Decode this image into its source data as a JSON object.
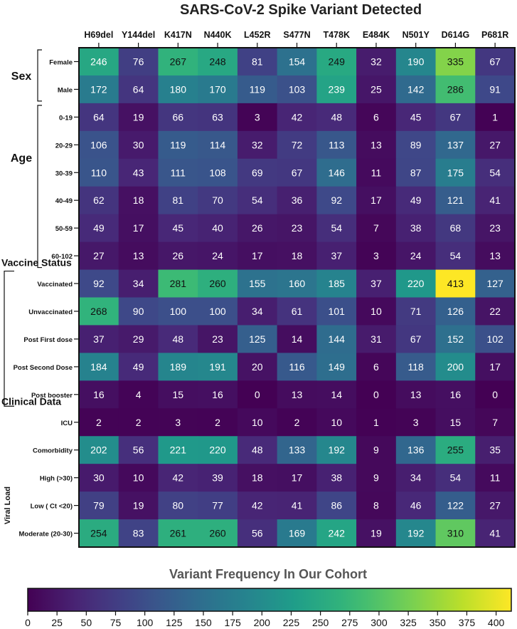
{
  "chart_data": {
    "type": "heatmap",
    "title": "SARS-CoV-2 Spike Variant Detected",
    "columns": [
      "H69del",
      "Y144del",
      "K417N",
      "N440K",
      "L452R",
      "S477N",
      "T478K",
      "E484K",
      "N501Y",
      "D614G",
      "P681R"
    ],
    "groups": [
      {
        "label": "Sex",
        "rows": [
          "Female",
          "Male"
        ]
      },
      {
        "label": "Age",
        "rows": [
          "0-19",
          "20-29",
          "30-39",
          "40-49",
          "50-59",
          "60-102"
        ]
      },
      {
        "label": "Vaccine Status",
        "rows": [
          "Vaccinated",
          "Unvaccinated",
          "Post First dose",
          "Post Second Dose",
          "Post booster"
        ]
      },
      {
        "label": "Clinical Data",
        "rows": [
          "ICU",
          "Comorbidity"
        ]
      },
      {
        "label": "Viral Load",
        "rows": [
          "High (>30)",
          "Low ( Ct <20)",
          "Moderate (20-30)"
        ]
      }
    ],
    "values": [
      [
        246,
        76,
        267,
        248,
        81,
        154,
        249,
        32,
        190,
        335,
        67
      ],
      [
        172,
        64,
        180,
        170,
        119,
        103,
        239,
        25,
        142,
        286,
        91
      ],
      [
        64,
        19,
        66,
        63,
        3,
        42,
        48,
        6,
        45,
        67,
        1
      ],
      [
        106,
        30,
        119,
        114,
        32,
        72,
        113,
        13,
        89,
        137,
        27
      ],
      [
        110,
        43,
        111,
        108,
        69,
        67,
        146,
        11,
        87,
        175,
        54
      ],
      [
        62,
        18,
        81,
        70,
        54,
        36,
        92,
        17,
        49,
        121,
        41
      ],
      [
        49,
        17,
        45,
        40,
        26,
        23,
        54,
        7,
        38,
        68,
        23
      ],
      [
        27,
        13,
        26,
        24,
        17,
        18,
        37,
        3,
        24,
        54,
        13
      ],
      [
        92,
        34,
        281,
        260,
        155,
        160,
        185,
        37,
        220,
        413,
        127
      ],
      [
        268,
        90,
        100,
        100,
        34,
        61,
        101,
        10,
        71,
        126,
        22
      ],
      [
        37,
        29,
        48,
        23,
        125,
        14,
        144,
        31,
        67,
        152,
        102
      ],
      [
        184,
        49,
        189,
        191,
        20,
        116,
        149,
        6,
        118,
        200,
        17
      ],
      [
        16,
        4,
        15,
        16,
        0,
        13,
        14,
        0,
        13,
        16,
        0
      ],
      [
        2,
        2,
        3,
        2,
        10,
        2,
        10,
        1,
        3,
        15,
        7
      ],
      [
        202,
        56,
        221,
        220,
        48,
        133,
        192,
        9,
        136,
        255,
        35
      ],
      [
        30,
        10,
        42,
        39,
        18,
        17,
        38,
        9,
        34,
        54,
        11
      ],
      [
        79,
        19,
        80,
        77,
        42,
        41,
        86,
        8,
        46,
        122,
        27
      ],
      [
        254,
        83,
        261,
        260,
        56,
        169,
        242,
        19,
        192,
        310,
        41
      ]
    ],
    "colorbar": {
      "title": "Variant Frequency In Our Cohort",
      "range": [
        0,
        413
      ],
      "ticks": [
        0,
        25,
        50,
        75,
        100,
        125,
        150,
        175,
        200,
        225,
        250,
        275,
        300,
        325,
        350,
        375,
        400
      ],
      "colormap": "viridis"
    }
  }
}
